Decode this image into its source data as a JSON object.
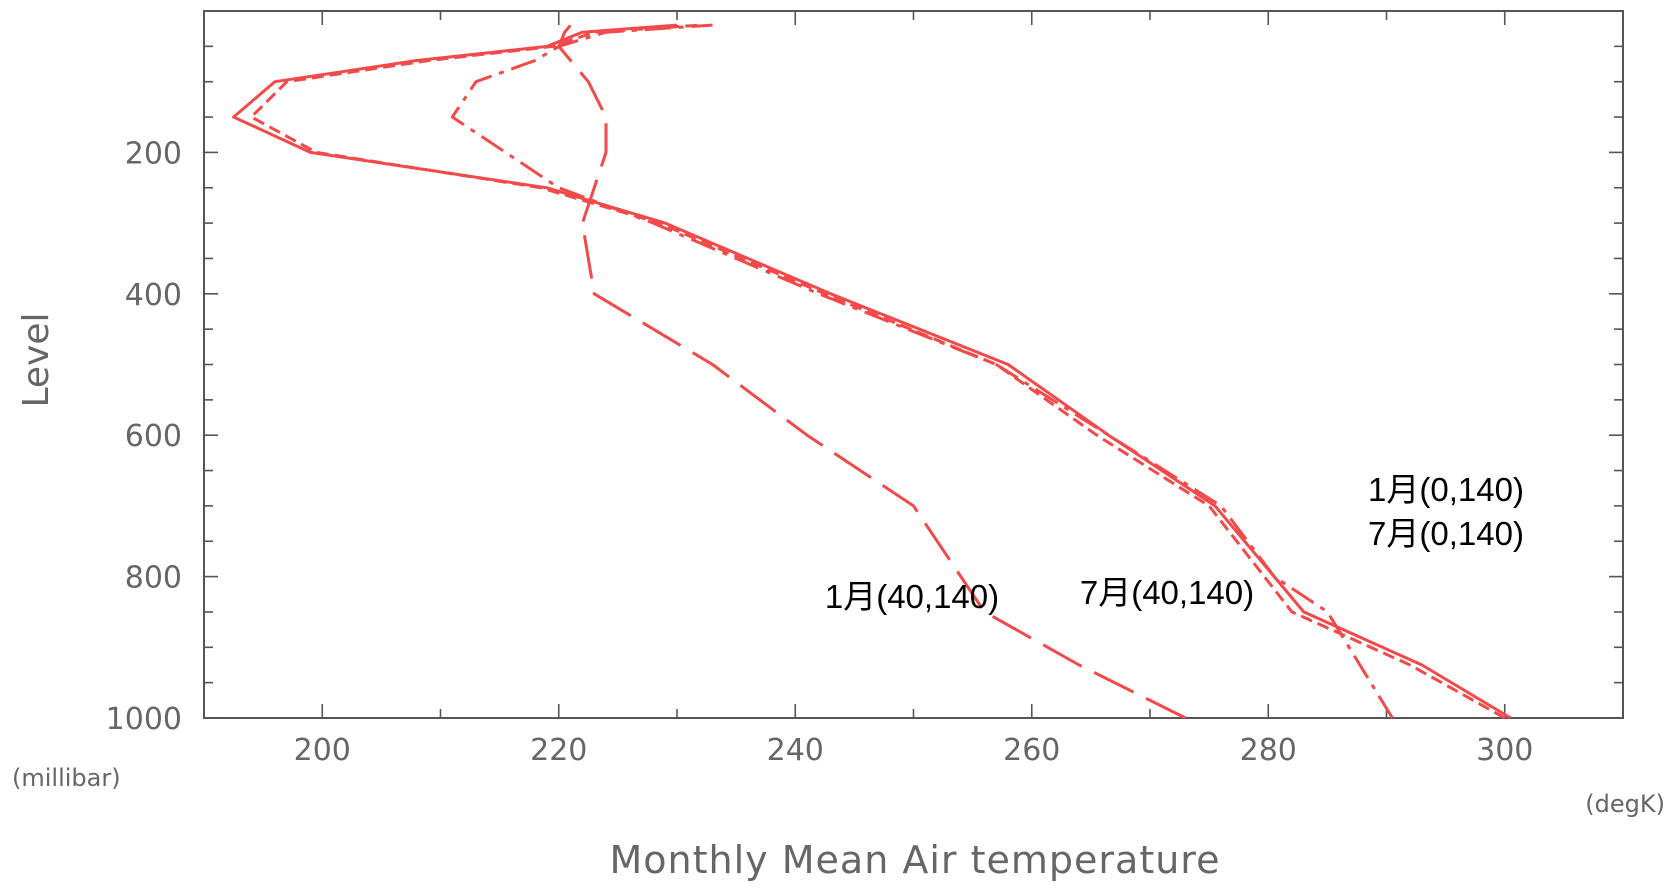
{
  "chart_data": {
    "type": "line",
    "title": "",
    "xlabel": "Monthly Mean Air temperature",
    "x_unit": "(degK)",
    "ylabel": "Level",
    "y_unit": "(millibar)",
    "xlim": [
      190,
      310
    ],
    "ylim": [
      1000,
      0
    ],
    "y_inverted": true,
    "grid": false,
    "x_ticks": [
      200,
      220,
      240,
      260,
      280,
      300
    ],
    "y_ticks": [
      200,
      400,
      600,
      800,
      1000
    ],
    "series": [
      {
        "dash": "solid",
        "points": [
          [
            300.5,
            1000
          ],
          [
            293,
            925
          ],
          [
            283,
            850
          ],
          [
            275.5,
            700
          ],
          [
            266.5,
            600
          ],
          [
            258,
            500
          ],
          [
            243,
            400
          ],
          [
            229,
            300
          ],
          [
            219,
            250
          ],
          [
            199,
            200
          ],
          [
            192.5,
            150
          ],
          [
            196,
            100
          ],
          [
            208,
            70
          ],
          [
            219,
            50
          ],
          [
            222,
            30
          ],
          [
            230,
            20
          ]
        ]
      },
      {
        "dash": "short-dash",
        "points": [
          [
            300,
            1000
          ],
          [
            292,
            925
          ],
          [
            282,
            850
          ],
          [
            275,
            700
          ],
          [
            265.5,
            600
          ],
          [
            257,
            500
          ],
          [
            242.5,
            400
          ],
          [
            228.5,
            300
          ],
          [
            218.5,
            250
          ],
          [
            199.5,
            200
          ],
          [
            194,
            150
          ],
          [
            197,
            100
          ],
          [
            209,
            70
          ],
          [
            219.5,
            50
          ],
          [
            223,
            30
          ],
          [
            232,
            20
          ]
        ]
      },
      {
        "dash": "dash-dot",
        "points": [
          [
            290.5,
            1000
          ],
          [
            285,
            850
          ],
          [
            280.5,
            800
          ],
          [
            276,
            700
          ],
          [
            266.5,
            600
          ],
          [
            257,
            500
          ],
          [
            242,
            400
          ],
          [
            228,
            300
          ],
          [
            220,
            250
          ],
          [
            215.5,
            200
          ],
          [
            211,
            150
          ],
          [
            213,
            100
          ],
          [
            218,
            70
          ],
          [
            220,
            50
          ],
          [
            224,
            30
          ],
          [
            233,
            20
          ]
        ]
      },
      {
        "dash": "long-dash",
        "points": [
          [
            273,
            1000
          ],
          [
            264,
            925
          ],
          [
            256,
            850
          ],
          [
            250,
            700
          ],
          [
            241,
            600
          ],
          [
            233,
            500
          ],
          [
            223,
            400
          ],
          [
            222,
            300
          ],
          [
            223,
            250
          ],
          [
            224,
            200
          ],
          [
            224,
            150
          ],
          [
            222.5,
            100
          ],
          [
            221,
            70
          ],
          [
            220,
            50
          ],
          [
            220.5,
            30
          ],
          [
            221,
            20
          ]
        ]
      }
    ],
    "annotations": [
      {
        "text": "1月(0,140)"
      },
      {
        "text": "7月(0,140)"
      },
      {
        "text": "1月(40,140)"
      },
      {
        "text": "7月(40,140)"
      }
    ],
    "line_color": "#f24a4a"
  }
}
